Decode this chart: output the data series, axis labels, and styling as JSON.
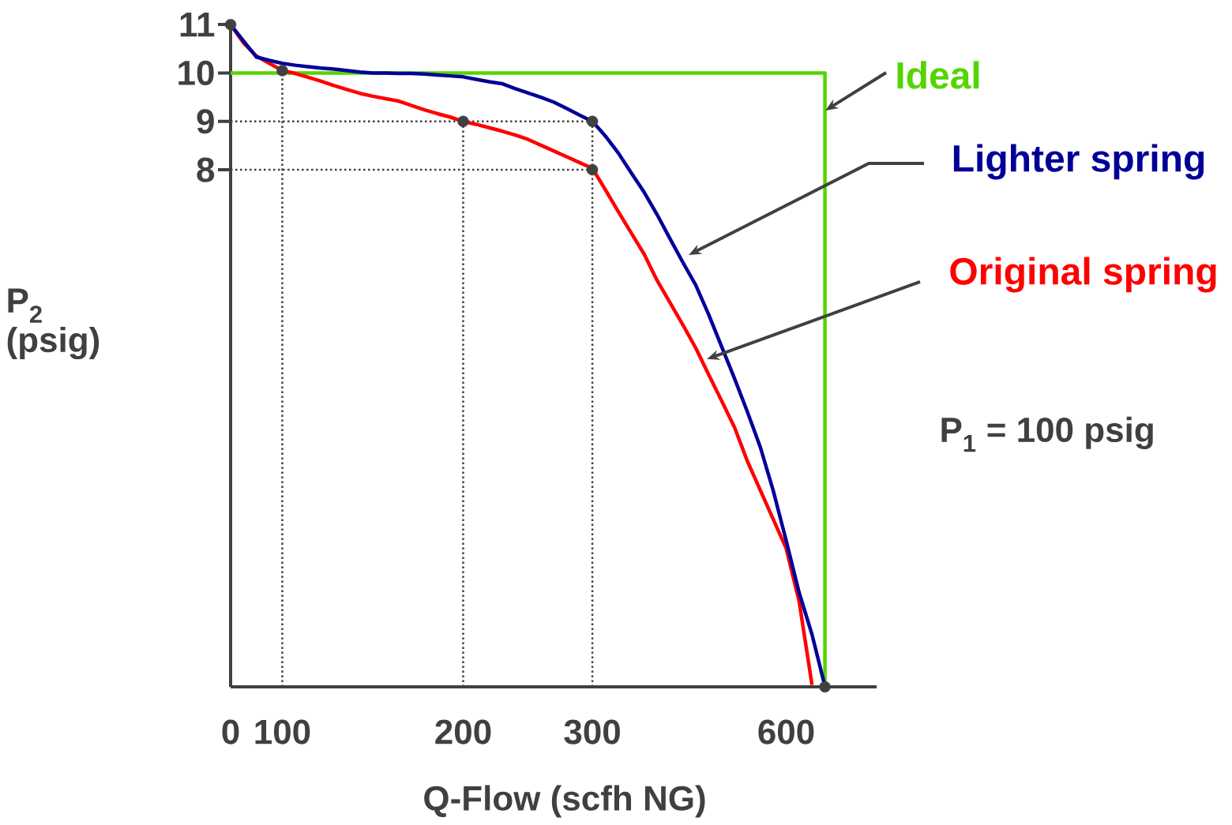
{
  "chart_data": {
    "type": "line",
    "xlabel": "Q-Flow (scfh NG)",
    "ylabel": "P$_{2}$ (psig)",
    "categories": [
      "0",
      null,
      null,
      null,
      "100",
      null,
      null,
      null,
      null,
      null,
      null,
      null,
      null,
      null,
      null,
      null,
      null,
      null,
      "200",
      null,
      null,
      null,
      null,
      null,
      null,
      null,
      null,
      null,
      "300",
      null,
      null,
      null,
      null,
      null,
      null,
      null,
      null,
      null,
      null,
      null,
      null,
      null,
      null,
      "600",
      null,
      null,
      null,
      null,
      null,
      null,
      null
    ],
    "ylim": [
      -2.68,
      11.1
    ],
    "yticks": [
      8,
      9,
      10,
      11
    ],
    "legend": false,
    "series": [
      {
        "name": "Ideal",
        "type": "step",
        "color": "#55d400",
        "values": [
          10,
          10,
          10,
          10,
          10,
          10,
          10,
          10,
          10,
          10,
          10,
          10,
          10,
          10,
          10,
          10,
          10,
          10,
          10,
          10,
          10,
          10,
          10,
          10,
          10,
          10,
          10,
          10,
          10,
          10,
          10,
          10,
          10,
          10,
          10,
          10,
          10,
          10,
          10,
          10,
          10,
          10,
          10,
          10,
          10,
          10,
          -2.68,
          null,
          null,
          null,
          null
        ]
      },
      {
        "name": "Original spring",
        "color": "#ff0000",
        "values": [
          11.0,
          10.62,
          10.35,
          10.2,
          10.05,
          9.99,
          9.91,
          9.83,
          9.74,
          9.66,
          9.58,
          9.52,
          9.47,
          9.42,
          9.33,
          9.24,
          9.16,
          9.09,
          9.0,
          8.94,
          8.87,
          8.8,
          8.72,
          8.63,
          8.51,
          8.39,
          8.27,
          8.15,
          8.03,
          7.59,
          7.14,
          6.7,
          6.26,
          5.72,
          5.26,
          4.8,
          4.32,
          3.77,
          3.23,
          2.68,
          1.98,
          1.38,
          0.78,
          0.18,
          -0.91,
          -2.64,
          null,
          null,
          null,
          null,
          null
        ]
      },
      {
        "name": "Lighter spring",
        "color": "#000099",
        "values": [
          11.0,
          10.66,
          10.33,
          10.26,
          10.2,
          10.16,
          10.13,
          10.1,
          10.08,
          10.05,
          10.02,
          10.0,
          10.0,
          9.99,
          9.99,
          9.98,
          9.96,
          9.94,
          9.92,
          9.87,
          9.82,
          9.78,
          9.68,
          9.59,
          9.5,
          9.4,
          9.27,
          9.13,
          9.0,
          8.7,
          8.35,
          7.94,
          7.54,
          7.08,
          6.58,
          6.09,
          5.62,
          5.01,
          4.35,
          3.69,
          3.0,
          2.27,
          1.37,
          0.34,
          -0.73,
          -1.6,
          -2.67,
          null,
          null,
          null,
          null
        ]
      },
      {
        "type": "scatter",
        "marker": "circle",
        "color": "#404040",
        "values": [
          11,
          null,
          null,
          null,
          10.05,
          null,
          null,
          null,
          null,
          null,
          null,
          null,
          null,
          null,
          null,
          null,
          null,
          null,
          9,
          null,
          null,
          null,
          null,
          null,
          null,
          null,
          null,
          null,
          9,
          null,
          null,
          null,
          null,
          null,
          null,
          null,
          null,
          null,
          null,
          null,
          null,
          null,
          null,
          null,
          null,
          null,
          -2.68,
          null,
          null,
          null,
          null
        ]
      },
      {
        "type": "scatter",
        "marker": "circle",
        "color": "#404040",
        "values": [
          null,
          null,
          null,
          null,
          null,
          null,
          null,
          null,
          null,
          null,
          null,
          null,
          null,
          null,
          null,
          null,
          null,
          null,
          null,
          null,
          null,
          null,
          null,
          null,
          null,
          null,
          null,
          null,
          8,
          null,
          null,
          null,
          null,
          null,
          null,
          null,
          null,
          null,
          null,
          null,
          null,
          null,
          null,
          null,
          null,
          null,
          null,
          null,
          null,
          null,
          null
        ]
      }
    ],
    "ref_lines": [
      {
        "axis": "x",
        "value": "100",
        "line_style": "dotted",
        "color": "#404040"
      },
      {
        "axis": "x",
        "value": "200",
        "line_style": "dotted",
        "color": "#404040"
      },
      {
        "axis": "x",
        "value": "300",
        "line_style": "dotted",
        "color": "#404040"
      },
      {
        "axis": "y",
        "value": 9,
        "line_style": "dotted",
        "color": "#404040"
      },
      {
        "axis": "y",
        "value": 8,
        "line_style": "dotted",
        "color": "#404040"
      }
    ],
    "annotations": [
      "P$_{1}$ = 100 psig"
    ]
  }
}
